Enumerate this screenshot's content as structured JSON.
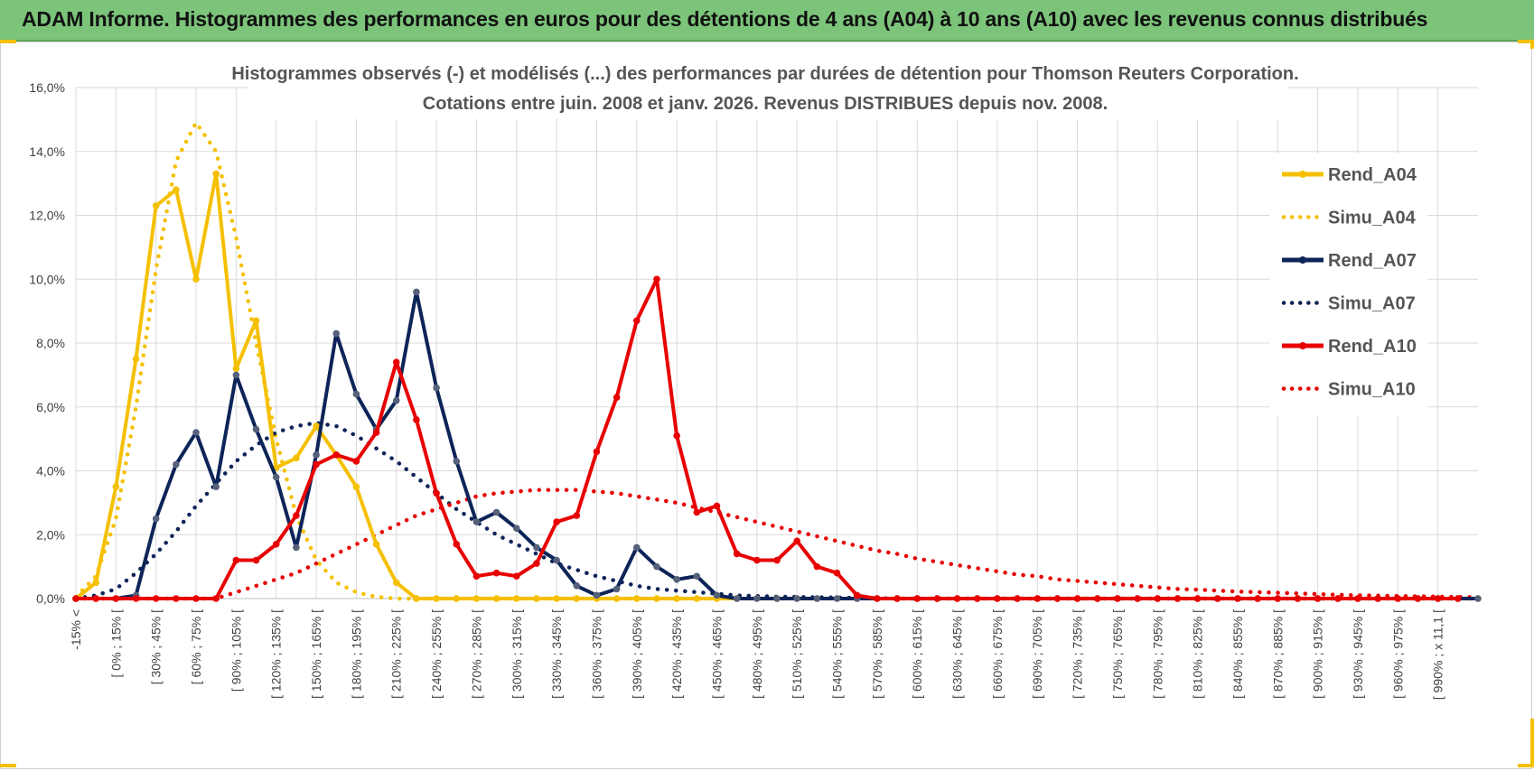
{
  "header": {
    "title": "ADAM Informe. Histogrammes des performances en euros pour des détentions de 4 ans (A04) à 10 ans (A10) avec les revenus connus distribués"
  },
  "chart_data": {
    "type": "line",
    "title": "Histogrammes observés (-) et modélisés (...) des performances par durées de détention pour Thomson Reuters Corporation.",
    "subtitle": "Cotations entre juin. 2008 et janv. 2026. Revenus DISTRIBUES depuis nov. 2008.",
    "xlabel": "",
    "ylabel": "",
    "ylim": [
      0,
      16
    ],
    "y_ticks": [
      "0,0%",
      "2,0%",
      "4,0%",
      "6,0%",
      "8,0%",
      "10,0%",
      "12,0%",
      "14,0%",
      "16,0%"
    ],
    "grid": true,
    "legend_position": "right",
    "x_count": 71,
    "x_tick_labels": [
      "-15% <",
      "[ 0% ; 15% [",
      "[ 30% ; 45% [",
      "[ 60% ; 75% [",
      "[ 90% ; 105% [",
      "[ 120% ; 135% [",
      "[ 150% ; 165% [",
      "[ 180% ; 195% [",
      "[ 210% ; 225% [",
      "[ 240% ; 255% [",
      "[ 270% ; 285% [",
      "[ 300% ; 315% [",
      "[ 330% ; 345% [",
      "[ 360% ; 375% [",
      "[ 390% ; 405% [",
      "[ 420% ; 435% [",
      "[ 450% ; 465% [",
      "[ 480% ; 495% [",
      "[ 510% ; 525% [",
      "[ 540% ; 555% [",
      "[ 570% ; 585% [",
      "[ 600% ; 615% [",
      "[ 630% ; 645% [",
      "[ 660% ; 675% [",
      "[ 690% ; 705% [",
      "[ 720% ; 735% [",
      "[ 750% ; 765% [",
      "[ 780% ; 795% [",
      "[ 810% ; 825% [",
      "[ 840% ; 855% [",
      "[ 870% ; 885% [",
      "[ 900% ; 915% [",
      "[ 930% ; 945% [",
      "[ 960% ; 975% [",
      "[ 990% ; x 11,1 ["
    ],
    "series": [
      {
        "name": "Rend_A04",
        "style": "solid",
        "color": "#f5c000",
        "values": [
          0,
          0.5,
          3.5,
          7.5,
          12.3,
          12.8,
          10,
          13.3,
          7.2,
          8.7,
          4.1,
          4.4,
          5.4,
          4.5,
          3.5,
          1.7,
          0.5,
          0,
          0,
          0,
          0,
          0,
          0,
          0,
          0,
          0,
          0,
          0,
          0,
          0,
          0,
          0,
          0,
          0,
          0,
          0,
          0,
          0,
          0,
          0,
          0,
          0,
          0,
          0,
          0,
          0,
          0,
          0,
          0,
          0,
          0,
          0,
          0,
          0,
          0,
          0,
          0,
          0,
          0,
          0,
          0,
          0,
          0,
          0,
          0,
          0,
          0,
          0,
          0,
          0,
          0
        ]
      },
      {
        "name": "Simu_A04",
        "style": "dotted",
        "color": "#f5c000",
        "values": [
          0.05,
          0.7,
          2.5,
          6,
          10.3,
          13.7,
          14.9,
          14,
          11.3,
          8,
          5,
          2.6,
          1.2,
          0.5,
          0.2,
          0.05,
          0,
          0,
          0,
          0,
          0,
          0,
          0,
          0,
          0,
          0,
          0,
          0,
          0,
          0,
          0,
          0,
          0,
          0,
          0,
          0,
          0,
          0,
          0,
          0,
          0,
          0,
          0,
          0,
          0,
          0,
          0,
          0,
          0,
          0,
          0,
          0,
          0,
          0,
          0,
          0,
          0,
          0,
          0,
          0,
          0,
          0,
          0,
          0,
          0,
          0,
          0,
          0,
          0,
          0,
          0
        ]
      },
      {
        "name": "Rend_A07",
        "style": "solid",
        "color": "#0d2458",
        "values": [
          0,
          0,
          0,
          0.1,
          2.5,
          4.2,
          5.2,
          3.5,
          7,
          5.3,
          3.8,
          1.6,
          4.5,
          8.3,
          6.4,
          5.3,
          6.2,
          9.6,
          6.6,
          4.3,
          2.4,
          2.7,
          2.2,
          1.6,
          1.2,
          0.4,
          0.1,
          0.3,
          1.6,
          1,
          0.6,
          0.7,
          0.1,
          0,
          0,
          0,
          0,
          0,
          0,
          0,
          0,
          0,
          0,
          0,
          0,
          0,
          0,
          0,
          0,
          0,
          0,
          0,
          0,
          0,
          0,
          0,
          0,
          0,
          0,
          0,
          0,
          0,
          0,
          0,
          0,
          0,
          0,
          0,
          0,
          0,
          0
        ]
      },
      {
        "name": "Simu_A07",
        "style": "dotted",
        "color": "#0d2458",
        "values": [
          0,
          0.1,
          0.3,
          0.8,
          1.4,
          2.1,
          2.9,
          3.6,
          4.3,
          4.8,
          5.2,
          5.4,
          5.5,
          5.4,
          5.1,
          4.7,
          4.3,
          3.8,
          3.3,
          2.8,
          2.4,
          2,
          1.7,
          1.4,
          1.1,
          0.9,
          0.7,
          0.55,
          0.4,
          0.3,
          0.25,
          0.2,
          0.15,
          0.1,
          0.08,
          0.06,
          0.05,
          0.04,
          0.03,
          0.02,
          0.01,
          0,
          0,
          0,
          0,
          0,
          0,
          0,
          0,
          0,
          0,
          0,
          0,
          0,
          0,
          0,
          0,
          0,
          0,
          0,
          0,
          0,
          0,
          0,
          0,
          0,
          0,
          0,
          0,
          0,
          0
        ]
      },
      {
        "name": "Rend_A10",
        "style": "solid",
        "color": "#e80000",
        "values": [
          0,
          0,
          0,
          0,
          0,
          0,
          0,
          0,
          1.2,
          1.2,
          1.7,
          2.6,
          4.2,
          4.5,
          4.3,
          5.2,
          7.4,
          5.6,
          3.3,
          1.7,
          0.7,
          0.8,
          0.7,
          1.1,
          2.4,
          2.6,
          4.6,
          6.3,
          8.7,
          10,
          5.1,
          2.7,
          2.9,
          1.4,
          1.2,
          1.2,
          1.8,
          1,
          0.8,
          0.1,
          0,
          0,
          0,
          0,
          0,
          0,
          0,
          0,
          0,
          0,
          0,
          0,
          0,
          0,
          0,
          0,
          0,
          0,
          0,
          0,
          0,
          0,
          0,
          0,
          0,
          0,
          0,
          0,
          0,
          0
        ]
      },
      {
        "name": "Simu_A10",
        "style": "dotted",
        "color": "#e80000",
        "values": [
          0,
          0,
          0,
          0,
          0,
          0,
          0,
          0,
          0.2,
          0.4,
          0.6,
          0.8,
          1.1,
          1.4,
          1.7,
          2,
          2.3,
          2.6,
          2.8,
          3,
          3.2,
          3.3,
          3.35,
          3.4,
          3.4,
          3.4,
          3.35,
          3.3,
          3.2,
          3.1,
          3,
          2.85,
          2.7,
          2.55,
          2.4,
          2.25,
          2.1,
          1.95,
          1.8,
          1.65,
          1.5,
          1.4,
          1.25,
          1.15,
          1.05,
          0.95,
          0.85,
          0.75,
          0.7,
          0.6,
          0.55,
          0.5,
          0.45,
          0.4,
          0.35,
          0.3,
          0.28,
          0.25,
          0.22,
          0.2,
          0.18,
          0.16,
          0.14,
          0.12,
          0.1,
          0.09,
          0.08,
          0.07,
          0.06,
          0.05,
          0.04
        ]
      }
    ]
  }
}
